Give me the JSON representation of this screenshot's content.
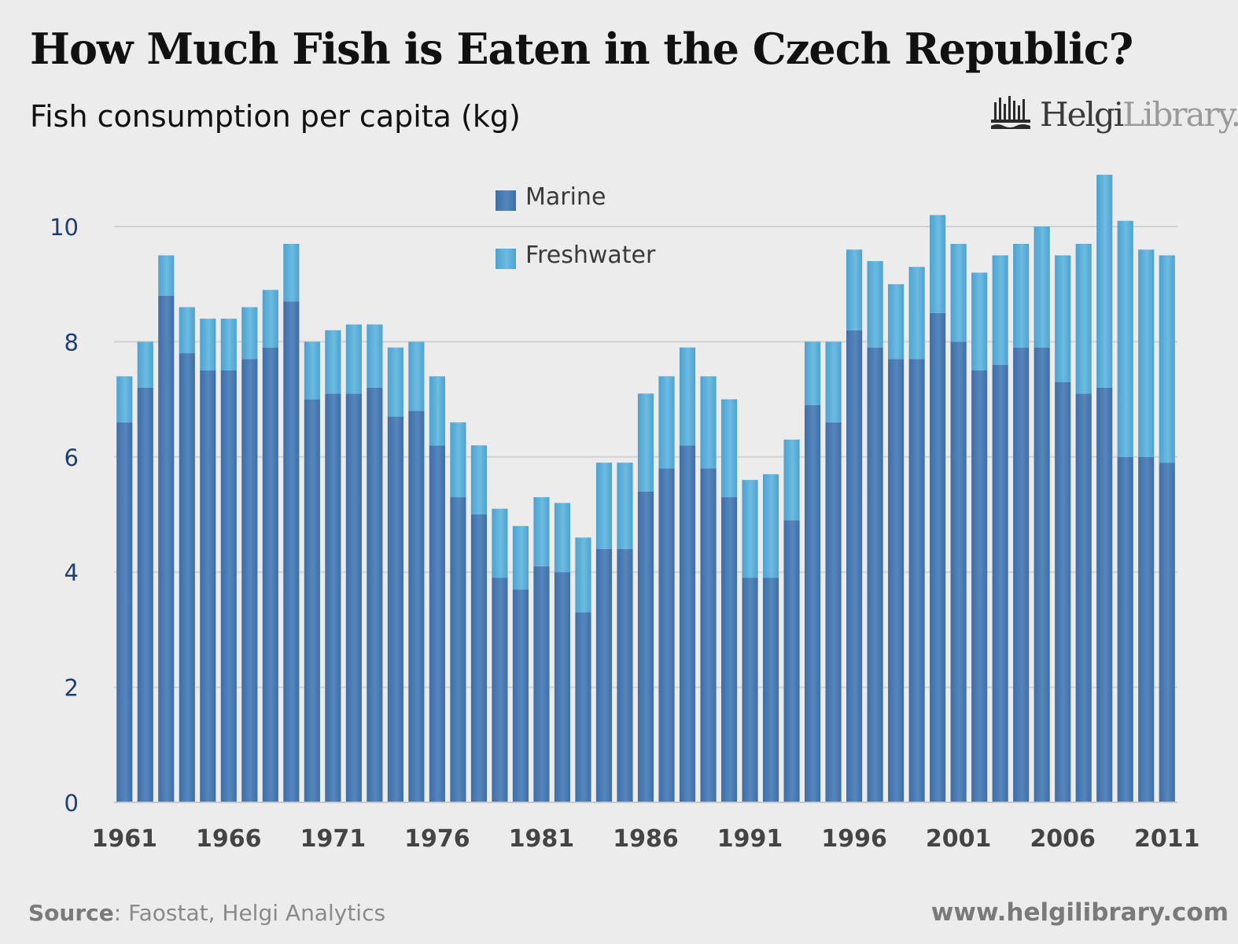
{
  "header": {
    "title": "How Much Fish is Eaten in the Czech Republic?",
    "subtitle": "Fish consumption per capita (kg)"
  },
  "logo": {
    "name_strong": "Helgi",
    "name_light": "Library.",
    "icon": "library-building-icon"
  },
  "footer": {
    "source_label": "Source",
    "source_text": ": Faostat, Helgi Analytics",
    "url": "www.helgilibrary.com"
  },
  "colors": {
    "marine": "#4f7fb5",
    "freshwater": "#5fb0d9",
    "grid": "#d2d2d2",
    "axis_text": "#1f3f6f"
  },
  "chart_data": {
    "type": "bar",
    "stacked": true,
    "title": "Fish consumption per capita (kg)",
    "xlabel": "",
    "ylabel": "",
    "ylim": [
      0,
      11
    ],
    "yticks": [
      0,
      2,
      4,
      6,
      8,
      10
    ],
    "xtick_labels": [
      "1961",
      "1966",
      "1971",
      "1976",
      "1981",
      "1986",
      "1991",
      "1996",
      "2001",
      "2006",
      "2011"
    ],
    "grid": true,
    "legend_position": "top-center",
    "categories": [
      "1961",
      "1962",
      "1963",
      "1964",
      "1965",
      "1966",
      "1967",
      "1968",
      "1969",
      "1970",
      "1971",
      "1972",
      "1973",
      "1974",
      "1975",
      "1976",
      "1977",
      "1978",
      "1979",
      "1980",
      "1981",
      "1982",
      "1983",
      "1984",
      "1985",
      "1986",
      "1987",
      "1988",
      "1989",
      "1990",
      "1991",
      "1992",
      "1993",
      "1994",
      "1995",
      "1996",
      "1997",
      "1998",
      "1999",
      "2000",
      "2001",
      "2002",
      "2003",
      "2004",
      "2005",
      "2006",
      "2007",
      "2008",
      "2009",
      "2010",
      "2011"
    ],
    "series": [
      {
        "name": "Marine",
        "values": [
          6.6,
          7.2,
          8.8,
          7.8,
          7.5,
          7.5,
          7.7,
          7.9,
          8.7,
          7.0,
          7.1,
          7.1,
          7.2,
          6.7,
          6.8,
          6.2,
          5.3,
          5.0,
          3.9,
          3.7,
          4.1,
          4.0,
          3.3,
          4.4,
          4.4,
          5.4,
          5.8,
          6.2,
          5.8,
          5.3,
          3.9,
          3.9,
          4.9,
          6.9,
          6.6,
          8.2,
          7.9,
          7.7,
          7.7,
          8.5,
          8.0,
          7.5,
          7.6,
          7.9,
          7.9,
          7.3,
          7.1,
          7.2,
          6.0,
          6.0,
          5.9
        ]
      },
      {
        "name": "Freshwater",
        "values": [
          0.8,
          0.8,
          0.7,
          0.8,
          0.9,
          0.9,
          0.9,
          1.0,
          1.0,
          1.0,
          1.1,
          1.2,
          1.1,
          1.2,
          1.2,
          1.2,
          1.3,
          1.2,
          1.2,
          1.1,
          1.2,
          1.2,
          1.3,
          1.5,
          1.5,
          1.7,
          1.6,
          1.7,
          1.6,
          1.7,
          1.7,
          1.8,
          1.4,
          1.1,
          1.4,
          1.4,
          1.5,
          1.3,
          1.6,
          1.7,
          1.7,
          1.7,
          1.9,
          1.8,
          2.1,
          2.2,
          2.6,
          3.7,
          4.1,
          3.6,
          3.6
        ]
      }
    ]
  }
}
